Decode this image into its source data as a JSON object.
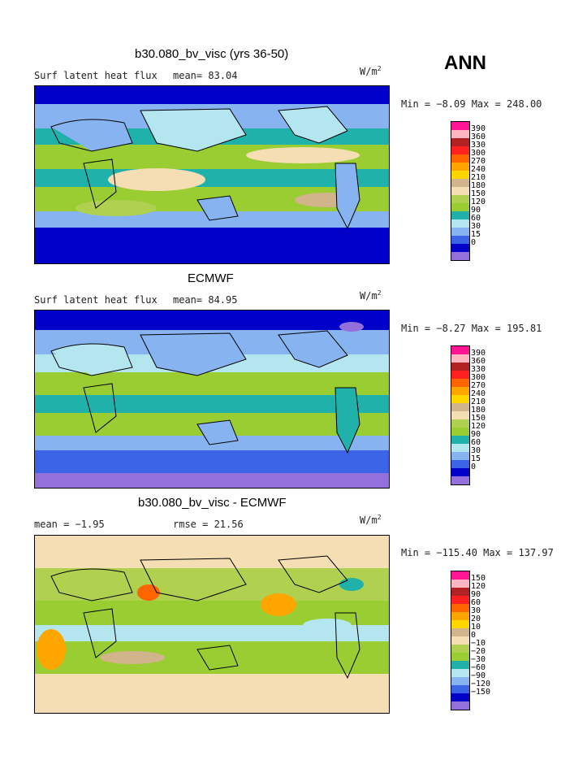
{
  "season": "ANN",
  "palettes": {
    "abs": [
      "#9370db",
      "#0000c8",
      "#3c64e6",
      "#87b4f0",
      "#b4e6f0",
      "#20b2aa",
      "#9acd32",
      "#b0d050",
      "#f5deb3",
      "#d2b48c",
      "#ffd700",
      "#ffa500",
      "#ff6400",
      "#ff2020",
      "#b22222",
      "#ffb6c1",
      "#ff1493"
    ],
    "diff": [
      "#9370db",
      "#0000c8",
      "#3c64e6",
      "#87b4f0",
      "#b4e6f0",
      "#20b2aa",
      "#9acd32",
      "#b0d050",
      "#f5deb3",
      "#d2b48c",
      "#ffd700",
      "#ffa500",
      "#ff6400",
      "#ff2020",
      "#b22222",
      "#ffb6c1",
      "#ff1493"
    ]
  },
  "panels": [
    {
      "title": "b30.080_bv_visc (yrs 36-50)",
      "left_label": "Surf latent heat flux",
      "stat1": "mean=  83.04",
      "stat2": "",
      "units": "W/m",
      "units_sup": "2",
      "minmax": "Min =  −8.09 Max = 248.00",
      "colorbar_labels": [
        "390",
        "360",
        "330",
        "300",
        "270",
        "240",
        "210",
        "180",
        "150",
        "120",
        "90",
        "60",
        "30",
        "15",
        "0"
      ]
    },
    {
      "title": "ECMWF",
      "left_label": "Surf latent heat flux",
      "stat1": "mean=  84.95",
      "stat2": "",
      "units": "W/m",
      "units_sup": "2",
      "minmax": "Min =  −8.27 Max = 195.81",
      "colorbar_labels": [
        "390",
        "360",
        "330",
        "300",
        "270",
        "240",
        "210",
        "180",
        "150",
        "120",
        "90",
        "60",
        "30",
        "15",
        "0"
      ]
    },
    {
      "title": "b30.080_bv_visc - ECMWF",
      "left_label": "mean =  −1.95",
      "stat1": "rmse =  21.56",
      "stat2": "",
      "units": "W/m",
      "units_sup": "2",
      "minmax": "Min = −115.40 Max = 137.97",
      "colorbar_labels": [
        "150",
        "120",
        "90",
        "60",
        "30",
        "20",
        "10",
        "0",
        "−10",
        "−20",
        "−30",
        "−60",
        "−90",
        "−120",
        "−150"
      ]
    }
  ]
}
